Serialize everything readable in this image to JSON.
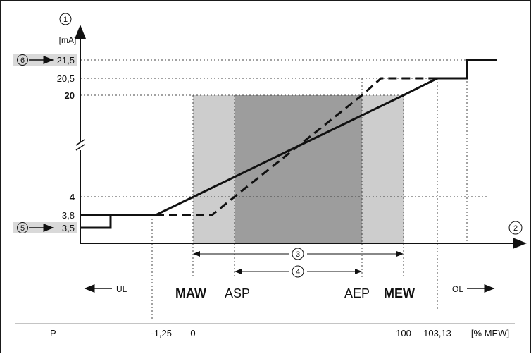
{
  "diagram": {
    "axis_y_circle": "1",
    "axis_x_circle": "2",
    "y_unit": "[mA]",
    "y_ticks": [
      "21,5",
      "20,5",
      "20",
      "4",
      "3,8",
      "3,5"
    ],
    "marker_left_top": "6",
    "marker_left_bottom": "5",
    "range_outer_circle": "3",
    "range_inner_circle": "4",
    "labels": {
      "ul": "UL",
      "maw": "MAW",
      "asp": "ASP",
      "aep": "AEP",
      "mew": "MEW",
      "ol": "OL"
    },
    "footer": {
      "p": "P",
      "v1": "-1,25",
      "v2": "0",
      "v3": "100",
      "v4": "103,13",
      "unit": "[% MEW]"
    }
  }
}
